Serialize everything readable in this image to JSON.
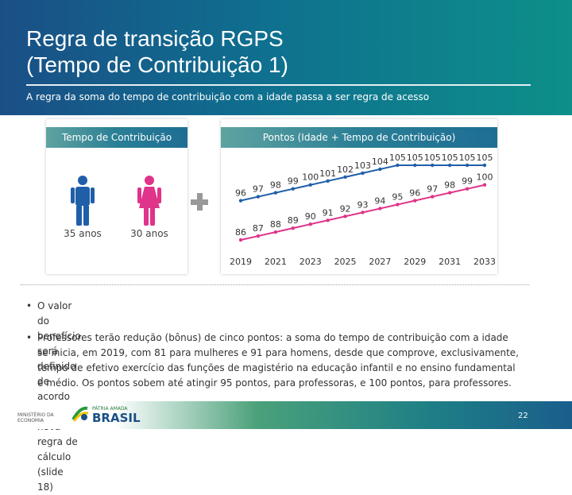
{
  "header": {
    "title_line1": "Regra de transição RGPS",
    "title_line2": "(Tempo de Contribuição 1)",
    "subtitle": "A regra da soma do tempo de contribuição com a idade passa a ser regra de acesso"
  },
  "left_panel": {
    "heading": "Tempo de Contribuição",
    "man_label": "35 anos",
    "woman_label": "30 anos",
    "man_color": "#1f5fa8",
    "woman_color": "#e0338a"
  },
  "right_panel": {
    "heading": "Pontos (Idade + Tempo de Contribuição)"
  },
  "chart_data": {
    "type": "line",
    "categories": [
      "2019",
      "2020",
      "2021",
      "2022",
      "2023",
      "2024",
      "2025",
      "2026",
      "2027",
      "2028",
      "2029",
      "2030",
      "2031",
      "2032",
      "2033"
    ],
    "x_tick_labels": [
      "2019",
      "2021",
      "2023",
      "2025",
      "2027",
      "2029",
      "2031",
      "2033"
    ],
    "series": [
      {
        "color": "#1f5fa8",
        "values": [
          96,
          97,
          98,
          99,
          100,
          101,
          102,
          103,
          104,
          105,
          105,
          105,
          105,
          105,
          105
        ]
      },
      {
        "color": "#e0338a",
        "values": [
          86,
          87,
          88,
          89,
          90,
          91,
          92,
          93,
          94,
          95,
          96,
          97,
          98,
          99,
          100
        ]
      }
    ]
  },
  "bullets": [
    "O valor do benefício será definido de acordo com a nova regra de cálculo (slide 18)",
    "Professores terão redução (bônus) de cinco pontos: a soma do tempo de contribuição com a idade",
    "se inicia, em 2019, com 81 para mulheres e 91 para homens, desde que comprove, exclusivamente,",
    "tempo de efetivo exercício das funções de magistério na educação infantil e no ensino fundamental",
    "e médio. Os pontos sobem até atingir 95 pontos, para professoras, e 100 pontos, para professores."
  ],
  "footer": {
    "ministry_line1": "MINISTÉRIO DA",
    "ministry_line2": "ECONOMIA",
    "brasil_small": "PÁTRIA AMADA",
    "brasil_big": "BRASIL",
    "page_number": "22"
  }
}
